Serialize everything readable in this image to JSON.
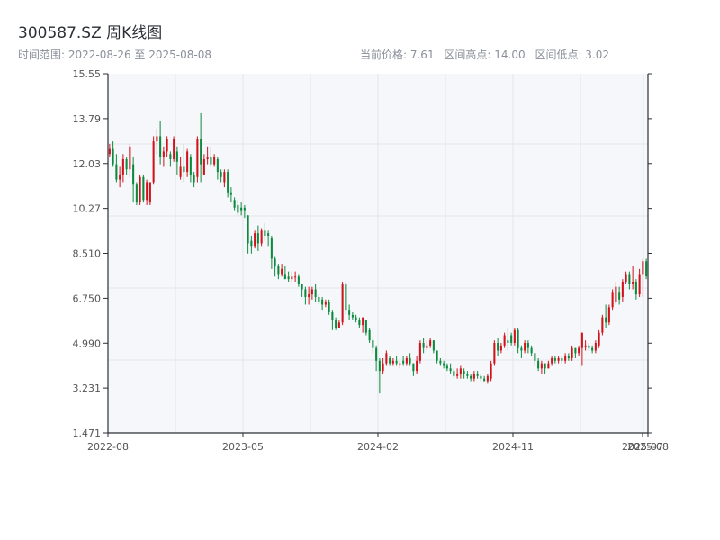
{
  "title": "300587.SZ 周K线图",
  "range_text": "时间范围: 2022-08-26 至 2025-08-08",
  "stats": {
    "current": "当前价格: 7.61",
    "high": "区间高点: 14.00",
    "low": "区间低点: 3.02"
  },
  "colors": {
    "up": "#d0121b",
    "down": "#0b8a3e",
    "plot_bg": "#f6f7fa",
    "grid": "#e2e5ea",
    "axis": "#2b2f36"
  },
  "chart_data": {
    "type": "candlestick",
    "title": "300587.SZ 周K线图",
    "xlabel": "",
    "ylabel": "",
    "ylim": [
      1.471,
      15.55
    ],
    "y_ticks": [
      "1.471",
      "3.231",
      "4.990",
      "6.750",
      "8.510",
      "10.27",
      "12.03",
      "13.79",
      "15.55"
    ],
    "x_ticks": [
      "2022-08",
      "2023-05",
      "2024-02",
      "2024-11",
      "2025-07",
      "2025-08"
    ],
    "grid": true,
    "candles": [
      [
        12.4,
        12.6,
        12.3,
        12.8
      ],
      [
        12.6,
        12.0,
        11.9,
        12.9
      ],
      [
        12.0,
        11.4,
        11.3,
        12.4
      ],
      [
        11.4,
        11.6,
        11.1,
        11.9
      ],
      [
        11.6,
        12.2,
        11.3,
        12.4
      ],
      [
        12.2,
        11.8,
        11.6,
        12.3
      ],
      [
        11.8,
        12.7,
        11.5,
        12.8
      ],
      [
        12.0,
        11.2,
        10.5,
        12.3
      ],
      [
        11.2,
        10.5,
        10.4,
        11.3
      ],
      [
        10.5,
        11.5,
        10.4,
        11.6
      ],
      [
        11.5,
        10.6,
        10.5,
        11.6
      ],
      [
        10.6,
        11.3,
        10.4,
        11.4
      ],
      [
        10.5,
        11.3,
        10.4,
        11.3
      ],
      [
        11.3,
        12.9,
        11.2,
        13.1
      ],
      [
        12.9,
        13.1,
        12.4,
        13.4
      ],
      [
        13.1,
        12.3,
        12.0,
        13.7
      ],
      [
        12.3,
        12.5,
        11.9,
        12.7
      ],
      [
        12.5,
        13.0,
        12.3,
        13.1
      ],
      [
        12.4,
        12.2,
        11.9,
        12.5
      ],
      [
        12.2,
        13.0,
        12.1,
        13.1
      ],
      [
        12.5,
        12.1,
        11.6,
        12.7
      ],
      [
        11.5,
        11.9,
        11.4,
        12.3
      ],
      [
        11.9,
        11.7,
        11.3,
        12.8
      ],
      [
        11.7,
        12.5,
        11.5,
        12.6
      ],
      [
        12.3,
        11.6,
        11.3,
        12.4
      ],
      [
        11.6,
        11.3,
        11.1,
        11.7
      ],
      [
        11.5,
        13.0,
        11.3,
        13.1
      ],
      [
        13.0,
        12.0,
        11.3,
        14.0
      ],
      [
        11.6,
        12.2,
        11.6,
        12.4
      ],
      [
        12.2,
        12.3,
        12.0,
        12.7
      ],
      [
        12.3,
        12.0,
        11.9,
        12.7
      ],
      [
        12.0,
        12.3,
        11.9,
        12.4
      ],
      [
        12.2,
        11.7,
        11.4,
        12.3
      ],
      [
        11.7,
        11.5,
        11.3,
        11.8
      ],
      [
        11.3,
        11.7,
        11.1,
        11.8
      ],
      [
        11.7,
        10.9,
        10.7,
        11.8
      ],
      [
        10.9,
        10.8,
        10.5,
        11.1
      ],
      [
        10.6,
        10.3,
        10.2,
        10.7
      ],
      [
        10.4,
        10.1,
        10.0,
        10.6
      ],
      [
        10.3,
        10.2,
        10.0,
        10.5
      ],
      [
        10.3,
        10.2,
        9.9,
        10.4
      ],
      [
        10.0,
        8.9,
        8.5,
        10.0
      ],
      [
        9.0,
        8.8,
        8.5,
        9.2
      ],
      [
        8.8,
        9.3,
        8.7,
        9.4
      ],
      [
        9.3,
        8.9,
        8.6,
        9.6
      ],
      [
        8.9,
        9.4,
        8.8,
        9.5
      ],
      [
        9.4,
        9.2,
        9.0,
        9.7
      ],
      [
        9.3,
        9.2,
        8.8,
        9.4
      ],
      [
        9.1,
        8.3,
        7.9,
        9.2
      ],
      [
        8.3,
        8.0,
        7.6,
        8.4
      ],
      [
        8.0,
        7.7,
        7.5,
        8.1
      ],
      [
        7.7,
        7.9,
        7.6,
        8.1
      ],
      [
        7.7,
        7.5,
        7.5,
        8.0
      ],
      [
        7.6,
        7.5,
        7.4,
        7.8
      ],
      [
        7.5,
        7.6,
        7.4,
        7.8
      ],
      [
        7.6,
        7.6,
        7.4,
        7.8
      ],
      [
        7.6,
        7.3,
        7.2,
        7.7
      ],
      [
        7.3,
        7.1,
        6.8,
        7.3
      ],
      [
        7.1,
        6.8,
        6.5,
        7.2
      ],
      [
        6.8,
        6.9,
        6.5,
        7.2
      ],
      [
        6.9,
        7.1,
        6.7,
        7.2
      ],
      [
        7.1,
        6.8,
        6.6,
        7.3
      ],
      [
        6.8,
        6.6,
        6.5,
        6.9
      ],
      [
        6.7,
        6.5,
        6.3,
        6.8
      ],
      [
        6.5,
        6.6,
        6.4,
        6.7
      ],
      [
        6.6,
        6.2,
        6.1,
        6.7
      ],
      [
        6.2,
        5.9,
        5.5,
        6.3
      ],
      [
        5.9,
        5.6,
        5.5,
        6.0
      ],
      [
        5.6,
        5.8,
        5.6,
        5.9
      ],
      [
        5.8,
        7.3,
        5.7,
        7.4
      ],
      [
        7.3,
        6.3,
        6.1,
        7.4
      ],
      [
        6.3,
        6.1,
        5.9,
        6.5
      ],
      [
        6.1,
        6.0,
        5.9,
        6.2
      ],
      [
        6.0,
        5.9,
        5.8,
        6.1
      ],
      [
        5.9,
        5.7,
        5.6,
        6.0
      ],
      [
        5.7,
        6.0,
        5.4,
        6.0
      ],
      [
        5.9,
        5.4,
        5.3,
        5.9
      ],
      [
        5.5,
        5.1,
        5.0,
        5.6
      ],
      [
        5.1,
        4.8,
        4.6,
        5.2
      ],
      [
        4.8,
        4.3,
        3.9,
        4.9
      ],
      [
        4.3,
        3.9,
        3.02,
        4.4
      ],
      [
        3.9,
        4.2,
        3.8,
        4.4
      ],
      [
        4.2,
        4.6,
        4.1,
        4.7
      ],
      [
        4.4,
        4.2,
        4.1,
        4.5
      ],
      [
        4.2,
        4.3,
        4.1,
        4.4
      ],
      [
        4.3,
        4.2,
        4.1,
        4.5
      ],
      [
        4.2,
        4.2,
        4.0,
        4.3
      ],
      [
        4.3,
        4.2,
        4.1,
        4.5
      ],
      [
        4.2,
        4.4,
        4.1,
        4.5
      ],
      [
        4.4,
        4.2,
        4.1,
        4.6
      ],
      [
        4.2,
        3.9,
        3.7,
        4.2
      ],
      [
        3.9,
        4.3,
        3.8,
        4.5
      ],
      [
        4.3,
        5.0,
        4.2,
        5.1
      ],
      [
        5.0,
        4.8,
        4.6,
        5.2
      ],
      [
        4.8,
        4.9,
        4.7,
        5.1
      ],
      [
        4.9,
        5.1,
        4.8,
        5.2
      ],
      [
        5.1,
        4.7,
        4.6,
        5.1
      ],
      [
        4.7,
        4.3,
        4.2,
        4.7
      ],
      [
        4.3,
        4.2,
        4.1,
        4.4
      ],
      [
        4.2,
        4.1,
        4.0,
        4.3
      ],
      [
        4.1,
        4.0,
        3.9,
        4.2
      ],
      [
        4.0,
        3.9,
        3.8,
        4.2
      ],
      [
        3.9,
        3.7,
        3.6,
        4.0
      ],
      [
        3.7,
        3.8,
        3.6,
        4.0
      ],
      [
        3.8,
        4.0,
        3.6,
        4.1
      ],
      [
        3.9,
        3.8,
        3.6,
        4.0
      ],
      [
        3.8,
        3.7,
        3.6,
        3.9
      ],
      [
        3.7,
        3.6,
        3.5,
        3.8
      ],
      [
        3.6,
        3.8,
        3.5,
        3.9
      ],
      [
        3.8,
        3.7,
        3.6,
        3.9
      ],
      [
        3.7,
        3.6,
        3.5,
        3.8
      ],
      [
        3.6,
        3.5,
        3.5,
        3.7
      ],
      [
        3.5,
        3.7,
        3.4,
        3.8
      ],
      [
        3.6,
        4.2,
        3.5,
        4.3
      ],
      [
        4.2,
        5.0,
        4.1,
        5.1
      ],
      [
        5.0,
        4.7,
        4.5,
        5.2
      ],
      [
        4.7,
        4.9,
        4.6,
        5.0
      ],
      [
        4.9,
        5.3,
        4.8,
        5.4
      ],
      [
        5.1,
        5.0,
        4.7,
        5.6
      ],
      [
        5.3,
        5.0,
        4.9,
        5.4
      ],
      [
        5.0,
        5.5,
        4.9,
        5.6
      ],
      [
        5.5,
        4.8,
        4.6,
        5.6
      ],
      [
        4.8,
        4.7,
        4.4,
        4.9
      ],
      [
        4.7,
        5.0,
        4.6,
        5.1
      ],
      [
        5.0,
        4.8,
        4.6,
        5.1
      ],
      [
        4.8,
        4.6,
        4.5,
        4.9
      ],
      [
        4.6,
        4.3,
        4.1,
        4.6
      ],
      [
        4.3,
        4.0,
        3.9,
        4.4
      ],
      [
        4.0,
        4.2,
        3.8,
        4.3
      ],
      [
        4.2,
        4.0,
        3.8,
        4.2
      ],
      [
        4.0,
        4.2,
        4.0,
        4.3
      ],
      [
        4.2,
        4.4,
        4.1,
        4.5
      ],
      [
        4.4,
        4.3,
        4.2,
        4.5
      ],
      [
        4.3,
        4.4,
        4.2,
        4.5
      ],
      [
        4.4,
        4.3,
        4.2,
        4.5
      ],
      [
        4.3,
        4.5,
        4.2,
        4.6
      ],
      [
        4.5,
        4.4,
        4.3,
        4.6
      ],
      [
        4.4,
        4.8,
        4.3,
        4.9
      ],
      [
        4.8,
        4.6,
        4.4,
        4.8
      ],
      [
        4.6,
        4.8,
        4.5,
        4.9
      ],
      [
        4.8,
        5.4,
        4.1,
        5.4
      ],
      [
        4.9,
        4.9,
        4.7,
        5.1
      ],
      [
        4.9,
        4.8,
        4.7,
        5.0
      ],
      [
        4.8,
        4.7,
        4.6,
        4.9
      ],
      [
        4.7,
        5.0,
        4.6,
        5.1
      ],
      [
        4.9,
        5.4,
        4.8,
        5.5
      ],
      [
        5.4,
        6.0,
        5.3,
        6.1
      ],
      [
        6.0,
        5.8,
        5.6,
        6.5
      ],
      [
        5.8,
        6.4,
        5.7,
        6.5
      ],
      [
        6.4,
        7.0,
        6.3,
        7.1
      ],
      [
        6.6,
        7.2,
        6.5,
        7.4
      ],
      [
        7.0,
        6.7,
        6.5,
        7.2
      ],
      [
        6.8,
        7.4,
        6.6,
        7.5
      ],
      [
        7.4,
        7.7,
        7.3,
        7.8
      ],
      [
        7.7,
        7.3,
        7.1,
        7.8
      ],
      [
        7.3,
        7.4,
        7.1,
        8.0
      ],
      [
        7.4,
        6.9,
        6.7,
        7.5
      ],
      [
        6.9,
        7.7,
        6.8,
        7.9
      ],
      [
        7.7,
        8.2,
        6.8,
        8.3
      ],
      [
        8.2,
        7.61,
        7.5,
        8.3
      ]
    ]
  }
}
